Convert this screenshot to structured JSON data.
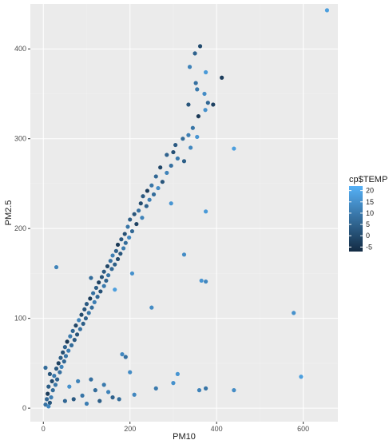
{
  "chart_data": {
    "type": "scatter",
    "xlabel": "PM10",
    "ylabel": "PM2.5",
    "xlim": [
      -30,
      680
    ],
    "ylim": [
      -15,
      450
    ],
    "x_ticks": [
      0,
      200,
      400,
      600
    ],
    "x_tick_labels": [
      "0",
      "200",
      "400",
      "600"
    ],
    "y_ticks": [
      0,
      100,
      200,
      300,
      400
    ],
    "y_tick_labels": [
      "0",
      "100",
      "200",
      "300",
      "400"
    ],
    "grid": true,
    "legend": {
      "title": "cp$TEMP",
      "placement": "right",
      "min": -7,
      "max": 22,
      "ticks": [
        20,
        15,
        10,
        5,
        0,
        -5
      ],
      "tick_labels": [
        "20",
        "15",
        "10",
        "5",
        "0",
        "-5"
      ],
      "color_low": "#132B43",
      "color_high": "#56B1F7"
    },
    "colors": {
      "panel_bg": "#EBEBEB",
      "grid_major": "#FFFFFF"
    },
    "points": [
      {
        "x": 655,
        "y": 443,
        "c": 18
      },
      {
        "x": 362,
        "y": 403,
        "c": 0
      },
      {
        "x": 350,
        "y": 395,
        "c": 5
      },
      {
        "x": 338,
        "y": 380,
        "c": 12
      },
      {
        "x": 375,
        "y": 374,
        "c": 17
      },
      {
        "x": 412,
        "y": 368,
        "c": -3
      },
      {
        "x": 352,
        "y": 362,
        "c": 8
      },
      {
        "x": 355,
        "y": 355,
        "c": 10
      },
      {
        "x": 372,
        "y": 350,
        "c": 14
      },
      {
        "x": 380,
        "y": 340,
        "c": 6
      },
      {
        "x": 392,
        "y": 338,
        "c": -2
      },
      {
        "x": 335,
        "y": 338,
        "c": 2
      },
      {
        "x": 374,
        "y": 332,
        "c": 15
      },
      {
        "x": 358,
        "y": 325,
        "c": -4
      },
      {
        "x": 345,
        "y": 312,
        "c": 9
      },
      {
        "x": 335,
        "y": 304,
        "c": 11
      },
      {
        "x": 355,
        "y": 302,
        "c": 16
      },
      {
        "x": 322,
        "y": 300,
        "c": 7
      },
      {
        "x": 305,
        "y": 293,
        "c": 3
      },
      {
        "x": 340,
        "y": 290,
        "c": 13
      },
      {
        "x": 440,
        "y": 289,
        "c": 18
      },
      {
        "x": 300,
        "y": 285,
        "c": 1
      },
      {
        "x": 285,
        "y": 282,
        "c": 5
      },
      {
        "x": 310,
        "y": 278,
        "c": 10
      },
      {
        "x": 325,
        "y": 275,
        "c": 4
      },
      {
        "x": 295,
        "y": 270,
        "c": 8
      },
      {
        "x": 270,
        "y": 268,
        "c": -1
      },
      {
        "x": 285,
        "y": 262,
        "c": 12
      },
      {
        "x": 260,
        "y": 258,
        "c": 6
      },
      {
        "x": 275,
        "y": 252,
        "c": 2
      },
      {
        "x": 250,
        "y": 248,
        "c": 9
      },
      {
        "x": 265,
        "y": 245,
        "c": 14
      },
      {
        "x": 240,
        "y": 242,
        "c": -3
      },
      {
        "x": 255,
        "y": 238,
        "c": 7
      },
      {
        "x": 230,
        "y": 236,
        "c": 3
      },
      {
        "x": 245,
        "y": 232,
        "c": 11
      },
      {
        "x": 225,
        "y": 228,
        "c": 0
      },
      {
        "x": 238,
        "y": 225,
        "c": 5
      },
      {
        "x": 295,
        "y": 228,
        "c": 16
      },
      {
        "x": 220,
        "y": 220,
        "c": 8
      },
      {
        "x": 375,
        "y": 219,
        "c": 17
      },
      {
        "x": 210,
        "y": 216,
        "c": 2
      },
      {
        "x": 228,
        "y": 212,
        "c": 12
      },
      {
        "x": 200,
        "y": 210,
        "c": 4
      },
      {
        "x": 215,
        "y": 205,
        "c": -2
      },
      {
        "x": 195,
        "y": 202,
        "c": 9
      },
      {
        "x": 205,
        "y": 197,
        "c": 6
      },
      {
        "x": 188,
        "y": 194,
        "c": 1
      },
      {
        "x": 198,
        "y": 190,
        "c": 13
      },
      {
        "x": 180,
        "y": 188,
        "c": 3
      },
      {
        "x": 190,
        "y": 184,
        "c": 7
      },
      {
        "x": 172,
        "y": 182,
        "c": -4
      },
      {
        "x": 185,
        "y": 178,
        "c": 10
      },
      {
        "x": 168,
        "y": 175,
        "c": 5
      },
      {
        "x": 178,
        "y": 172,
        "c": 2
      },
      {
        "x": 160,
        "y": 170,
        "c": 11
      },
      {
        "x": 325,
        "y": 171,
        "c": 14
      },
      {
        "x": 172,
        "y": 166,
        "c": 0
      },
      {
        "x": 155,
        "y": 164,
        "c": 8
      },
      {
        "x": 165,
        "y": 160,
        "c": 4
      },
      {
        "x": 148,
        "y": 158,
        "c": -1
      },
      {
        "x": 30,
        "y": 157,
        "c": 12
      },
      {
        "x": 158,
        "y": 155,
        "c": 6
      },
      {
        "x": 140,
        "y": 152,
        "c": 3
      },
      {
        "x": 205,
        "y": 150,
        "c": 15
      },
      {
        "x": 150,
        "y": 148,
        "c": 9
      },
      {
        "x": 135,
        "y": 146,
        "c": 2
      },
      {
        "x": 110,
        "y": 145,
        "c": 7
      },
      {
        "x": 365,
        "y": 142,
        "c": 16
      },
      {
        "x": 145,
        "y": 142,
        "c": 5
      },
      {
        "x": 375,
        "y": 141,
        "c": 13
      },
      {
        "x": 128,
        "y": 140,
        "c": -2
      },
      {
        "x": 140,
        "y": 136,
        "c": 10
      },
      {
        "x": 122,
        "y": 134,
        "c": 4
      },
      {
        "x": 165,
        "y": 132,
        "c": 18
      },
      {
        "x": 132,
        "y": 130,
        "c": 1
      },
      {
        "x": 115,
        "y": 128,
        "c": 8
      },
      {
        "x": 125,
        "y": 124,
        "c": 6
      },
      {
        "x": 108,
        "y": 122,
        "c": -3
      },
      {
        "x": 118,
        "y": 118,
        "c": 11
      },
      {
        "x": 100,
        "y": 116,
        "c": 3
      },
      {
        "x": 250,
        "y": 112,
        "c": 14
      },
      {
        "x": 112,
        "y": 112,
        "c": 7
      },
      {
        "x": 95,
        "y": 110,
        "c": 2
      },
      {
        "x": 105,
        "y": 106,
        "c": 9
      },
      {
        "x": 578,
        "y": 106,
        "c": 15
      },
      {
        "x": 88,
        "y": 104,
        "c": 0
      },
      {
        "x": 98,
        "y": 100,
        "c": 5
      },
      {
        "x": 82,
        "y": 98,
        "c": 12
      },
      {
        "x": 92,
        "y": 94,
        "c": 4
      },
      {
        "x": 75,
        "y": 92,
        "c": -1
      },
      {
        "x": 85,
        "y": 88,
        "c": 8
      },
      {
        "x": 68,
        "y": 86,
        "c": 6
      },
      {
        "x": 78,
        "y": 82,
        "c": 2
      },
      {
        "x": 62,
        "y": 80,
        "c": 10
      },
      {
        "x": 72,
        "y": 76,
        "c": 3
      },
      {
        "x": 55,
        "y": 74,
        "c": -4
      },
      {
        "x": 65,
        "y": 70,
        "c": 7
      },
      {
        "x": 50,
        "y": 68,
        "c": 5
      },
      {
        "x": 58,
        "y": 64,
        "c": 11
      },
      {
        "x": 45,
        "y": 62,
        "c": 1
      },
      {
        "x": 182,
        "y": 60,
        "c": 13
      },
      {
        "x": 52,
        "y": 58,
        "c": 9
      },
      {
        "x": 190,
        "y": 57,
        "c": 8
      },
      {
        "x": 40,
        "y": 56,
        "c": 4
      },
      {
        "x": 48,
        "y": 52,
        "c": 6
      },
      {
        "x": 35,
        "y": 50,
        "c": -2
      },
      {
        "x": 42,
        "y": 46,
        "c": 12
      },
      {
        "x": 5,
        "y": 45,
        "c": 7
      },
      {
        "x": 30,
        "y": 44,
        "c": 3
      },
      {
        "x": 38,
        "y": 40,
        "c": 8
      },
      {
        "x": 200,
        "y": 40,
        "c": 14
      },
      {
        "x": 15,
        "y": 38,
        "c": 2
      },
      {
        "x": 25,
        "y": 36,
        "c": 10
      },
      {
        "x": 310,
        "y": 38,
        "c": 16
      },
      {
        "x": 32,
        "y": 32,
        "c": 5
      },
      {
        "x": 595,
        "y": 35,
        "c": 18
      },
      {
        "x": 20,
        "y": 30,
        "c": 0
      },
      {
        "x": 28,
        "y": 26,
        "c": 9
      },
      {
        "x": 12,
        "y": 24,
        "c": 4
      },
      {
        "x": 22,
        "y": 20,
        "c": 7
      },
      {
        "x": 10,
        "y": 16,
        "c": -3
      },
      {
        "x": 18,
        "y": 12,
        "c": 11
      },
      {
        "x": 8,
        "y": 10,
        "c": 6
      },
      {
        "x": 15,
        "y": 6,
        "c": 2
      },
      {
        "x": 5,
        "y": 4,
        "c": 8
      },
      {
        "x": 12,
        "y": 2,
        "c": 13
      },
      {
        "x": 150,
        "y": 18,
        "c": 12
      },
      {
        "x": 120,
        "y": 20,
        "c": 7
      },
      {
        "x": 160,
        "y": 12,
        "c": 5
      },
      {
        "x": 90,
        "y": 14,
        "c": 9
      },
      {
        "x": 70,
        "y": 10,
        "c": 3
      },
      {
        "x": 100,
        "y": 5,
        "c": 11
      },
      {
        "x": 50,
        "y": 8,
        "c": 6
      },
      {
        "x": 260,
        "y": 22,
        "c": 10
      },
      {
        "x": 300,
        "y": 28,
        "c": 15
      },
      {
        "x": 360,
        "y": 20,
        "c": 12
      },
      {
        "x": 440,
        "y": 20,
        "c": 14
      },
      {
        "x": 375,
        "y": 22,
        "c": 9
      },
      {
        "x": 130,
        "y": 8,
        "c": 4
      },
      {
        "x": 80,
        "y": 30,
        "c": 12
      },
      {
        "x": 60,
        "y": 24,
        "c": 15
      },
      {
        "x": 110,
        "y": 32,
        "c": 8
      },
      {
        "x": 140,
        "y": 26,
        "c": 10
      },
      {
        "x": 175,
        "y": 10,
        "c": 7
      },
      {
        "x": 210,
        "y": 15,
        "c": 13
      }
    ]
  }
}
